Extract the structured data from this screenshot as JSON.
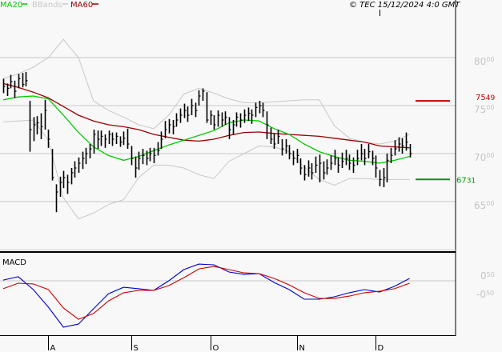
{
  "header": {
    "legend": [
      {
        "label": "MA20",
        "color": "#00cc00"
      },
      {
        "label": "BBands",
        "color": "#c8c8c8"
      },
      {
        "label": "MA60",
        "color": "#990000"
      }
    ],
    "copyright": "© TEC 15/12/2024 4:0 GMT"
  },
  "chart_data": [
    {
      "type": "ohlc-bar",
      "ylim": [
        60,
        84
      ],
      "grid": true,
      "y_ticks": [
        {
          "int": "80",
          "dec": "00",
          "value": 80
        },
        {
          "int": "75",
          "dec": "00",
          "value": 75
        },
        {
          "int": "70",
          "dec": "00",
          "value": 70
        },
        {
          "int": "65",
          "dec": "00",
          "value": 65
        }
      ],
      "x_ticks": [
        {
          "label": "A",
          "date": "2024-08-01"
        },
        {
          "label": "S",
          "date": "2024-09-02"
        },
        {
          "label": "O",
          "date": "2024-10-01"
        },
        {
          "label": "N",
          "date": "2024-11-01"
        },
        {
          "label": "D",
          "date": "2024-12-02"
        }
      ],
      "levels": [
        {
          "value": 75.49,
          "int": "75",
          "dec": "49",
          "color": "#cc0000"
        },
        {
          "value": 67.31,
          "int": "67",
          "dec": "31",
          "color": "#009900"
        }
      ],
      "bars_fields": [
        "date",
        "high",
        "low",
        "close"
      ],
      "bars": [
        [
          "2024-07-16",
          77.8,
          76.3,
          77.0
        ],
        [
          "2024-07-17",
          77.3,
          76.0,
          76.8
        ],
        [
          "2024-07-18",
          78.2,
          76.8,
          77.5
        ],
        [
          "2024-07-19",
          77.6,
          75.8,
          76.5
        ],
        [
          "2024-07-22",
          78.3,
          76.8,
          77.8
        ],
        [
          "2024-07-23",
          78.4,
          76.9,
          77.2
        ],
        [
          "2024-07-24",
          78.5,
          77.0,
          77.6
        ],
        [
          "2024-07-25",
          75.5,
          70.2,
          72.5
        ],
        [
          "2024-07-26",
          73.8,
          71.3,
          73.0
        ],
        [
          "2024-07-29",
          73.9,
          72.0,
          73.2
        ],
        [
          "2024-07-30",
          74.2,
          71.5,
          72.8
        ],
        [
          "2024-07-31",
          75.6,
          72.5,
          74.5
        ],
        [
          "2024-08-01",
          72.5,
          70.6,
          71.5
        ],
        [
          "2024-08-02",
          70.5,
          67.2,
          67.5
        ],
        [
          "2024-08-05",
          66.8,
          63.9,
          66.0
        ],
        [
          "2024-08-06",
          67.6,
          65.5,
          67.0
        ],
        [
          "2024-08-07",
          68.2,
          66.4,
          67.5
        ],
        [
          "2024-08-08",
          67.8,
          65.8,
          67.0
        ],
        [
          "2024-08-09",
          68.5,
          66.8,
          68.0
        ],
        [
          "2024-08-12",
          69.2,
          67.5,
          68.5
        ],
        [
          "2024-08-13",
          69.6,
          68.0,
          69.0
        ],
        [
          "2024-08-14",
          70.2,
          68.4,
          69.5
        ],
        [
          "2024-08-15",
          70.6,
          68.9,
          70.0
        ],
        [
          "2024-08-16",
          71.0,
          69.5,
          70.5
        ],
        [
          "2024-08-19",
          72.5,
          70.0,
          72.0
        ],
        [
          "2024-08-20",
          72.4,
          70.5,
          71.5
        ],
        [
          "2024-08-21",
          72.4,
          70.8,
          71.8
        ],
        [
          "2024-08-22",
          72.0,
          70.6,
          71.5
        ],
        [
          "2024-08-23",
          72.4,
          71.0,
          72.0
        ],
        [
          "2024-08-26",
          72.2,
          70.8,
          71.5
        ],
        [
          "2024-08-27",
          72.2,
          71.0,
          71.8
        ],
        [
          "2024-08-28",
          71.8,
          70.7,
          71.2
        ],
        [
          "2024-08-29",
          72.3,
          70.9,
          71.6
        ],
        [
          "2024-08-30",
          72.6,
          70.5,
          71.0
        ],
        [
          "2024-09-02",
          70.8,
          68.8,
          69.5
        ],
        [
          "2024-09-03",
          69.7,
          67.5,
          68.5
        ],
        [
          "2024-09-04",
          70.2,
          68.3,
          69.5
        ],
        [
          "2024-09-05",
          70.5,
          68.9,
          69.8
        ],
        [
          "2024-09-06",
          70.3,
          68.8,
          69.5
        ],
        [
          "2024-09-09",
          70.6,
          69.2,
          70.0
        ],
        [
          "2024-09-10",
          70.6,
          69.0,
          69.8
        ],
        [
          "2024-09-11",
          71.2,
          69.8,
          70.3
        ],
        [
          "2024-09-12",
          72.3,
          70.5,
          71.5
        ],
        [
          "2024-09-13",
          73.4,
          71.6,
          72.5
        ],
        [
          "2024-09-16",
          73.6,
          72.1,
          73.0
        ],
        [
          "2024-09-17",
          73.5,
          72.0,
          72.8
        ],
        [
          "2024-09-18",
          74.2,
          72.8,
          73.5
        ],
        [
          "2024-09-19",
          74.7,
          73.2,
          74.0
        ],
        [
          "2024-09-20",
          75.2,
          73.7,
          74.5
        ],
        [
          "2024-09-23",
          74.9,
          73.3,
          74.0
        ],
        [
          "2024-09-24",
          75.7,
          74.0,
          75.0
        ],
        [
          "2024-09-25",
          75.3,
          73.8,
          74.5
        ],
        [
          "2024-09-26",
          76.6,
          75.0,
          76.0
        ],
        [
          "2024-09-27",
          76.8,
          75.5,
          76.5
        ],
        [
          "2024-09-30",
          76.4,
          73.2,
          73.5
        ],
        [
          "2024-10-01",
          74.5,
          73.0,
          74.0
        ],
        [
          "2024-10-02",
          74.0,
          72.5,
          73.0
        ],
        [
          "2024-10-03",
          74.5,
          72.8,
          74.0
        ],
        [
          "2024-10-04",
          74.3,
          72.8,
          73.5
        ],
        [
          "2024-10-07",
          74.4,
          73.0,
          73.8
        ],
        [
          "2024-10-08",
          73.8,
          71.5,
          72.5
        ],
        [
          "2024-10-09",
          73.5,
          72.0,
          73.0
        ],
        [
          "2024-10-10",
          74.3,
          72.8,
          73.8
        ],
        [
          "2024-10-11",
          74.2,
          72.7,
          73.5
        ],
        [
          "2024-10-14",
          74.6,
          73.2,
          74.0
        ],
        [
          "2024-10-15",
          74.8,
          73.4,
          74.2
        ],
        [
          "2024-10-16",
          74.6,
          73.1,
          74.0
        ],
        [
          "2024-10-17",
          75.3,
          73.8,
          74.8
        ],
        [
          "2024-10-18",
          75.5,
          74.2,
          75.0
        ],
        [
          "2024-10-21",
          75.3,
          73.8,
          74.5
        ],
        [
          "2024-10-22",
          74.4,
          71.5,
          73.0
        ],
        [
          "2024-10-23",
          72.7,
          71.0,
          71.5
        ],
        [
          "2024-10-24",
          72.1,
          70.5,
          71.0
        ],
        [
          "2024-10-25",
          72.5,
          71.0,
          71.8
        ],
        [
          "2024-10-28",
          71.5,
          69.8,
          70.5
        ],
        [
          "2024-10-29",
          71.5,
          70.0,
          70.8
        ],
        [
          "2024-10-30",
          70.9,
          69.4,
          70.0
        ],
        [
          "2024-10-31",
          70.3,
          68.8,
          69.5
        ],
        [
          "2024-11-01",
          70.5,
          69.0,
          69.8
        ],
        [
          "2024-11-04",
          69.5,
          67.8,
          68.5
        ],
        [
          "2024-11-05",
          68.8,
          67.2,
          67.8
        ],
        [
          "2024-11-06",
          69.3,
          67.6,
          68.5
        ],
        [
          "2024-11-07",
          69.0,
          67.3,
          68.0
        ],
        [
          "2024-11-08",
          69.7,
          68.0,
          68.8
        ],
        [
          "2024-11-11",
          69.9,
          67.0,
          69.0
        ],
        [
          "2024-11-12",
          69.2,
          67.3,
          68.0
        ],
        [
          "2024-11-13",
          69.4,
          67.8,
          68.5
        ],
        [
          "2024-11-14",
          69.8,
          68.3,
          69.0
        ],
        [
          "2024-11-15",
          70.4,
          68.8,
          69.5
        ],
        [
          "2024-11-18",
          69.6,
          68.0,
          68.8
        ],
        [
          "2024-11-19",
          70.1,
          68.5,
          69.2
        ],
        [
          "2024-11-20",
          70.4,
          68.8,
          69.5
        ],
        [
          "2024-11-21",
          69.9,
          68.3,
          69.0
        ],
        [
          "2024-11-22",
          69.6,
          68.0,
          68.8
        ],
        [
          "2024-11-25",
          70.4,
          68.8,
          69.5
        ],
        [
          "2024-11-26",
          71.0,
          69.3,
          70.0
        ],
        [
          "2024-11-27",
          70.5,
          68.8,
          69.5
        ],
        [
          "2024-11-28",
          71.0,
          69.5,
          70.2
        ],
        [
          "2024-11-29",
          70.3,
          68.8,
          69.5
        ],
        [
          "2024-12-02",
          69.8,
          67.5,
          68.5
        ],
        [
          "2024-12-03",
          68.3,
          66.6,
          67.3
        ],
        [
          "2024-12-04",
          68.5,
          66.5,
          67.5
        ],
        [
          "2024-12-05",
          70.0,
          67.0,
          69.3
        ],
        [
          "2024-12-06",
          70.6,
          69.0,
          69.8
        ],
        [
          "2024-12-09",
          71.4,
          69.8,
          70.5
        ],
        [
          "2024-12-10",
          71.7,
          70.2,
          71.0
        ],
        [
          "2024-12-11",
          71.6,
          70.0,
          70.8
        ],
        [
          "2024-12-12",
          72.2,
          70.3,
          71.2
        ],
        [
          "2024-12-13",
          71.0,
          69.6,
          70.0
        ]
      ],
      "line_dates": [
        "2024-07-16",
        "2024-07-22",
        "2024-07-26",
        "2024-08-01",
        "2024-08-07",
        "2024-08-13",
        "2024-08-19",
        "2024-08-23",
        "2024-08-29",
        "2024-09-04",
        "2024-09-10",
        "2024-09-16",
        "2024-09-20",
        "2024-09-26",
        "2024-10-02",
        "2024-10-08",
        "2024-10-14",
        "2024-10-18",
        "2024-10-24",
        "2024-10-30",
        "2024-11-05",
        "2024-11-11",
        "2024-11-15",
        "2024-11-21",
        "2024-11-27",
        "2024-12-03",
        "2024-12-09",
        "2024-12-13"
      ],
      "series": [
        {
          "name": "MA60",
          "color": "#990000",
          "values": [
            77.3,
            76.9,
            76.4,
            75.8,
            74.9,
            74.0,
            73.4,
            73.0,
            72.8,
            72.5,
            72.0,
            71.7,
            71.4,
            71.3,
            71.5,
            71.9,
            72.2,
            72.25,
            72.1,
            72.0,
            71.9,
            71.8,
            71.6,
            71.4,
            71.2,
            70.8,
            70.7,
            70.6
          ]
        },
        {
          "name": "MA20",
          "color": "#00cc00",
          "values": [
            75.6,
            75.9,
            76.0,
            75.7,
            74.0,
            72.2,
            70.7,
            69.8,
            69.3,
            69.7,
            70.3,
            70.9,
            71.4,
            71.9,
            72.4,
            73.2,
            73.5,
            73.4,
            72.6,
            72.0,
            71.0,
            70.2,
            69.7,
            69.3,
            69.2,
            69.0,
            69.3,
            69.7
          ]
        },
        {
          "name": "BBands",
          "band": "upper",
          "color": "#c8c8c8",
          "values": [
            77.8,
            78.3,
            79.0,
            80.0,
            81.9,
            80.0,
            75.5,
            74.5,
            73.8,
            73.0,
            72.6,
            74.0,
            76.2,
            76.8,
            76.3,
            75.7,
            75.3,
            75.3,
            75.4,
            75.5,
            75.6,
            75.6,
            72.9,
            71.6,
            71.2,
            71.0,
            71.3,
            72.0
          ]
        },
        {
          "name": "BBands",
          "band": "lower",
          "color": "#c8c8c8",
          "values": [
            73.3,
            73.4,
            73.5,
            71.4,
            65.4,
            63.2,
            63.8,
            64.7,
            65.2,
            67.5,
            68.8,
            68.8,
            68.5,
            67.8,
            67.4,
            69.2,
            70.0,
            70.8,
            70.7,
            70.2,
            68.6,
            67.3,
            66.7,
            67.4,
            67.4,
            67.3,
            67.3,
            67.3
          ]
        }
      ]
    },
    {
      "type": "line",
      "title": "MACD",
      "y_ticks": [
        {
          "label": "0.50",
          "int": "0",
          "dec": "50"
        },
        {
          "label": "-0.50",
          "int": "-0",
          "dec": "50"
        }
      ],
      "zero_line": 0,
      "series": [
        {
          "color": "#0000cc",
          "values": [
            0.04,
            0.22,
            -0.48,
            -1.43,
            -2.52,
            -2.35,
            -1.52,
            -0.7,
            -0.35,
            -0.43,
            -0.52,
            0.0,
            0.61,
            0.91,
            0.87,
            0.48,
            0.35,
            0.39,
            -0.09,
            -0.48,
            -1.0,
            -1.0,
            -0.87,
            -0.65,
            -0.48,
            -0.61,
            -0.3,
            0.13
          ]
        },
        {
          "color": "#cc0000",
          "values": [
            -0.43,
            -0.13,
            -0.17,
            -0.48,
            -1.48,
            -2.09,
            -1.78,
            -1.09,
            -0.65,
            -0.52,
            -0.52,
            -0.26,
            0.17,
            0.65,
            0.78,
            0.61,
            0.43,
            0.39,
            0.13,
            -0.22,
            -0.65,
            -0.96,
            -0.96,
            -0.83,
            -0.65,
            -0.57,
            -0.43,
            -0.13
          ]
        }
      ]
    }
  ]
}
